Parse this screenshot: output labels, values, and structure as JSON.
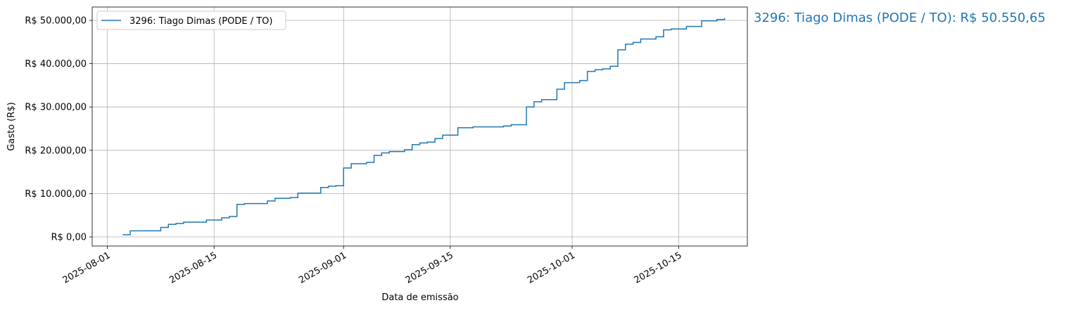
{
  "chart_data": {
    "type": "step",
    "annotation": "3296: Tiago Dimas (PODE / TO): R$ 50.550,65",
    "x_label": "Data de emissão",
    "y_label": "Gasto (R$)",
    "x": [
      "2025-08-03",
      "2025-08-04",
      "2025-08-08",
      "2025-08-09",
      "2025-08-10",
      "2025-08-11",
      "2025-08-14",
      "2025-08-16",
      "2025-08-17",
      "2025-08-18",
      "2025-08-19",
      "2025-08-22",
      "2025-08-23",
      "2025-08-25",
      "2025-08-26",
      "2025-08-29",
      "2025-08-30",
      "2025-08-31",
      "2025-09-01",
      "2025-09-02",
      "2025-09-04",
      "2025-09-05",
      "2025-09-06",
      "2025-09-07",
      "2025-09-09",
      "2025-09-10",
      "2025-09-11",
      "2025-09-12",
      "2025-09-13",
      "2025-09-14",
      "2025-09-16",
      "2025-09-18",
      "2025-09-22",
      "2025-09-23",
      "2025-09-25",
      "2025-09-26",
      "2025-09-27",
      "2025-09-29",
      "2025-09-30",
      "2025-10-02",
      "2025-10-03",
      "2025-10-04",
      "2025-10-05",
      "2025-10-06",
      "2025-10-07",
      "2025-10-08",
      "2025-10-09",
      "2025-10-10",
      "2025-10-12",
      "2025-10-13",
      "2025-10-14",
      "2025-10-16",
      "2025-10-18",
      "2025-10-20",
      "2025-10-21"
    ],
    "series": [
      {
        "name": "3296: Tiago Dimas (PODE / TO)",
        "color": "#1f77b4",
        "values": [
          500,
          1400,
          2200,
          2900,
          3100,
          3400,
          3900,
          4400,
          4700,
          7500,
          7700,
          8300,
          8900,
          9100,
          10100,
          11400,
          11700,
          11800,
          15900,
          16900,
          17200,
          18800,
          19400,
          19700,
          20100,
          21300,
          21700,
          21900,
          22700,
          23500,
          25200,
          25400,
          25600,
          25900,
          30000,
          31200,
          31700,
          34100,
          35600,
          36100,
          38200,
          38600,
          38800,
          39400,
          43200,
          44500,
          44900,
          45700,
          46200,
          47800,
          48000,
          48600,
          49900,
          50200,
          50550.65
        ]
      }
    ],
    "xlim": [
      "2025-07-30",
      "2025-10-24"
    ],
    "xticks": [
      "2025-08-01",
      "2025-08-15",
      "2025-09-01",
      "2025-09-15",
      "2025-10-01",
      "2025-10-15"
    ],
    "ylim": [
      -2110,
      53080
    ],
    "yticks": [
      {
        "value": 0,
        "label": "R$ 0,00"
      },
      {
        "value": 10000,
        "label": "R$ 10.000,00"
      },
      {
        "value": 20000,
        "label": "R$ 20.000,00"
      },
      {
        "value": 30000,
        "label": "R$ 30.000,00"
      },
      {
        "value": 40000,
        "label": "R$ 40.000,00"
      },
      {
        "value": 50000,
        "label": "R$ 50.000,00"
      }
    ],
    "grid": true,
    "legend": "upper left"
  }
}
